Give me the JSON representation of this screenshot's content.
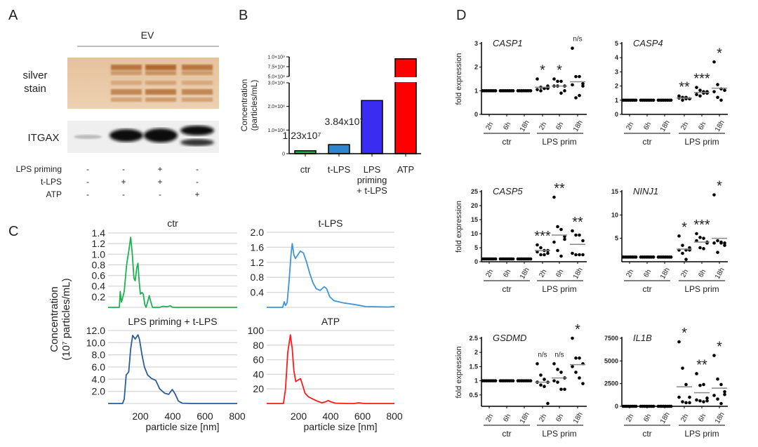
{
  "panel_letters": {
    "a": "A",
    "b": "B",
    "c": "C",
    "d": "D"
  },
  "panel_a": {
    "ev_label": "EV",
    "silver_stain_label": [
      "silver",
      "stain"
    ],
    "itgax_label": "ITGAX",
    "condition_rows": [
      {
        "label": "LPS priming",
        "signs": [
          "-",
          "-",
          "+",
          "-"
        ]
      },
      {
        "label": "t-LPS",
        "signs": [
          "-",
          "+",
          "+",
          "-"
        ]
      },
      {
        "label": "ATP",
        "signs": [
          "-",
          "-",
          "-",
          "+"
        ]
      }
    ],
    "colors": {
      "silver_bg": "#e9c9a6",
      "silver_band": "#a55a1c",
      "blot_bg": "#efefef",
      "blot_band": "#111111"
    }
  },
  "chart_data": [
    {
      "id": "B",
      "type": "bar",
      "ylabel": [
        "Concentration",
        "(particles/mL)"
      ],
      "categories": [
        [
          "ctr"
        ],
        [
          "t-LPS"
        ],
        [
          "LPS",
          "priming",
          "+ t-LPS"
        ],
        [
          "ATP"
        ]
      ],
      "values": [
        12300000,
        38400000,
        225000000,
        950000000
      ],
      "colors": [
        "#1fb040",
        "#2f86d0",
        "#3a2cf0",
        "#ff0000"
      ],
      "data_labels": [
        "1.23x10⁷",
        "3.84x10⁷",
        "",
        ""
      ],
      "ytick_values": [
        0,
        100000000,
        200000000,
        300000000,
        500000000,
        750000000,
        1000000000
      ],
      "ytick_labels": [
        "0",
        "1.0×10⁸",
        "2.0×10⁸",
        "3.0×10⁸",
        "5.0×10⁸",
        "7.5×10⁸",
        "1.0×10⁹"
      ],
      "axis_break": [
        300000000,
        500000000
      ],
      "ylim": [
        0,
        1000000000
      ]
    },
    {
      "id": "C",
      "type": "line",
      "ylabel": [
        "Concentration",
        "(10⁷ particles/mL)"
      ],
      "xlabel": "particle size [nm]",
      "xlim": [
        0,
        800
      ],
      "xticks": [
        "200",
        "400",
        "600",
        "800"
      ],
      "grid": true,
      "panels": [
        {
          "title": "ctr",
          "color": "#1fb050",
          "ylim": [
            0,
            1.4
          ],
          "yticks": [
            "0.2",
            "0.4",
            "0.6",
            "0.8",
            "1.0",
            "1.2",
            "1.4"
          ],
          "points": [
            [
              0,
              0
            ],
            [
              70,
              0
            ],
            [
              75,
              0.3
            ],
            [
              82,
              0.1
            ],
            [
              88,
              0.15
            ],
            [
              100,
              0.3
            ],
            [
              115,
              0.8
            ],
            [
              130,
              1.1
            ],
            [
              140,
              1.32
            ],
            [
              150,
              1.0
            ],
            [
              160,
              0.55
            ],
            [
              168,
              0.5
            ],
            [
              178,
              0.75
            ],
            [
              185,
              0.83
            ],
            [
              192,
              0.5
            ],
            [
              200,
              0.25
            ],
            [
              210,
              0.28
            ],
            [
              218,
              0.25
            ],
            [
              228,
              0.05
            ],
            [
              235,
              0.0
            ],
            [
              245,
              0.1
            ],
            [
              255,
              0.22
            ],
            [
              265,
              0.1
            ],
            [
              275,
              0.0
            ],
            [
              320,
              0.0
            ],
            [
              340,
              0.02
            ],
            [
              365,
              0.01
            ],
            [
              385,
              0.03
            ],
            [
              400,
              0.0
            ],
            [
              800,
              0
            ]
          ]
        },
        {
          "title": "t-LPS",
          "color": "#3c95d8",
          "ylim": [
            0,
            2.0
          ],
          "yticks": [
            "0.4",
            "0.8",
            "1.2",
            "1.6",
            "2.0"
          ],
          "points": [
            [
              0,
              0
            ],
            [
              100,
              0
            ],
            [
              110,
              0.15
            ],
            [
              118,
              0.05
            ],
            [
              128,
              0.12
            ],
            [
              140,
              0.7
            ],
            [
              152,
              1.4
            ],
            [
              160,
              1.7
            ],
            [
              170,
              1.4
            ],
            [
              180,
              1.3
            ],
            [
              195,
              1.4
            ],
            [
              210,
              1.5
            ],
            [
              230,
              1.45
            ],
            [
              250,
              1.2
            ],
            [
              270,
              0.9
            ],
            [
              290,
              0.65
            ],
            [
              310,
              0.5
            ],
            [
              335,
              0.45
            ],
            [
              360,
              0.55
            ],
            [
              375,
              0.5
            ],
            [
              395,
              0.28
            ],
            [
              420,
              0.18
            ],
            [
              480,
              0.12
            ],
            [
              560,
              0.07
            ],
            [
              620,
              0.02
            ],
            [
              760,
              0.01
            ],
            [
              800,
              0.02
            ]
          ]
        },
        {
          "title": "LPS priming + t-LPS",
          "color": "#2a5d96",
          "ylim": [
            0,
            12.0
          ],
          "yticks": [
            "2.0",
            "4.0",
            "6.0",
            "8.0",
            "10.0",
            "12.0"
          ],
          "points": [
            [
              0,
              0
            ],
            [
              90,
              0
            ],
            [
              100,
              0.7
            ],
            [
              112,
              4.7
            ],
            [
              128,
              5.2
            ],
            [
              140,
              9
            ],
            [
              152,
              11.2
            ],
            [
              168,
              10.6
            ],
            [
              185,
              11.3
            ],
            [
              195,
              10.5
            ],
            [
              210,
              8
            ],
            [
              225,
              6
            ],
            [
              245,
              4.7
            ],
            [
              270,
              4.1
            ],
            [
              295,
              3.8
            ],
            [
              320,
              2.4
            ],
            [
              350,
              1.7
            ],
            [
              375,
              1.5
            ],
            [
              398,
              2.3
            ],
            [
              415,
              1.6
            ],
            [
              435,
              0.4
            ],
            [
              460,
              0.05
            ],
            [
              520,
              0
            ],
            [
              800,
              0
            ]
          ]
        },
        {
          "title": "ATP",
          "color": "#ff1a1a",
          "ylim": [
            0,
            100
          ],
          "yticks": [
            "20",
            "40",
            "60",
            "80",
            "100"
          ],
          "points": [
            [
              0,
              0
            ],
            [
              105,
              0
            ],
            [
              118,
              20
            ],
            [
              132,
              70
            ],
            [
              148,
              94
            ],
            [
              160,
              75
            ],
            [
              170,
              45
            ],
            [
              182,
              30
            ],
            [
              195,
              32
            ],
            [
              212,
              34
            ],
            [
              225,
              25
            ],
            [
              240,
              14
            ],
            [
              262,
              9
            ],
            [
              290,
              6
            ],
            [
              320,
              3
            ],
            [
              345,
              1
            ],
            [
              365,
              2
            ],
            [
              385,
              4
            ],
            [
              405,
              2
            ],
            [
              430,
              0.5
            ],
            [
              500,
              0
            ],
            [
              550,
              0
            ],
            [
              575,
              1
            ],
            [
              610,
              0
            ],
            [
              800,
              0
            ]
          ]
        }
      ]
    },
    {
      "id": "D",
      "type": "scatter",
      "ylabel": "fold expression",
      "xtick_labels": [
        "2h",
        "6h",
        "18h",
        "2h",
        "6h",
        "18h"
      ],
      "group_labels": [
        "ctr",
        "LPS prim"
      ],
      "mean_line_color": "#888888",
      "panels": [
        {
          "gene": "CASP1",
          "ylim": [
            0,
            3
          ],
          "yticks": [
            0,
            1,
            2,
            3
          ],
          "annotations": [
            "*",
            "*",
            "n/s"
          ],
          "groups": [
            [
              1,
              1,
              1,
              1,
              1,
              1,
              1,
              1
            ],
            [
              1,
              1,
              1,
              1,
              1,
              1,
              1,
              1
            ],
            [
              1,
              1,
              1,
              1,
              1,
              1,
              1,
              1
            ],
            [
              1.5,
              1.15,
              1.1,
              1.1,
              1.05,
              1.0,
              1.1,
              1.2
            ],
            [
              1.5,
              1.4,
              1.4,
              1.2,
              1.2,
              1.2,
              0.9,
              1.0
            ],
            [
              2.8,
              1.6,
              1.6,
              1.2,
              1.25,
              0.7,
              0.8,
              1.3
            ]
          ],
          "means": [
            1,
            1,
            1,
            1.15,
            1.2,
            1.38
          ]
        },
        {
          "gene": "CASP4",
          "ylim": [
            0,
            5
          ],
          "yticks": [
            0,
            1,
            2,
            3,
            4,
            5
          ],
          "annotations": [
            "**",
            "***",
            "*"
          ],
          "groups": [
            [
              1,
              1,
              1,
              1,
              1,
              1,
              1,
              1
            ],
            [
              1,
              1,
              1,
              1,
              1,
              1,
              1,
              1
            ],
            [
              1,
              1,
              1,
              1,
              1,
              1,
              1,
              1
            ],
            [
              1.3,
              1.2,
              1.1,
              1.1,
              1.15,
              1.0,
              1.2,
              1.1
            ],
            [
              1.9,
              1.7,
              1.6,
              1.5,
              1.4,
              1.3,
              1.5,
              1.6
            ],
            [
              3.7,
              2.1,
              1.8,
              1.7,
              1.6,
              1.2,
              1.0,
              1.7
            ]
          ],
          "means": [
            1,
            1,
            1,
            1.15,
            1.55,
            1.85
          ]
        },
        {
          "gene": "CASP5",
          "ylim": [
            0,
            25
          ],
          "yticks": [
            0,
            5,
            10,
            15,
            20,
            25
          ],
          "annotations": [
            "***",
            "**",
            "**"
          ],
          "groups": [
            [
              1,
              1,
              1,
              1,
              1,
              1,
              1,
              1
            ],
            [
              1,
              1,
              1,
              1,
              1,
              1,
              1,
              1
            ],
            [
              1,
              1,
              1,
              1,
              1,
              1,
              1,
              1
            ],
            [
              6,
              5,
              4,
              4,
              3.5,
              2.5,
              2.5,
              3
            ],
            [
              23,
              12.5,
              11.5,
              8,
              7,
              4,
              2,
              9
            ],
            [
              11,
              9.5,
              9.5,
              7.5,
              3,
              2.5,
              2.5,
              2.5
            ]
          ],
          "means": [
            1,
            1,
            1,
            4,
            9.5,
            6.2
          ]
        },
        {
          "gene": "NINJ1",
          "ylim": [
            0,
            15
          ],
          "yticks": [
            5,
            10,
            15
          ],
          "annotations": [
            "*",
            "***",
            "*"
          ],
          "groups": [
            [
              1,
              1,
              1,
              1,
              1,
              1,
              1,
              1
            ],
            [
              1,
              1,
              1,
              1,
              1,
              1,
              1,
              1
            ],
            [
              1,
              1,
              1,
              1,
              1,
              1,
              1,
              1
            ],
            [
              5.5,
              3.5,
              2.5,
              2.5,
              2.5,
              1.8,
              0.5,
              3
            ],
            [
              6,
              5.2,
              5,
              4.2,
              4.5,
              3,
              2.8,
              4
            ],
            [
              14.3,
              4.5,
              4.2,
              3.5,
              4,
              2,
              4,
              4
            ]
          ],
          "means": [
            1,
            1,
            1,
            2.7,
            4.2,
            5
          ]
        },
        {
          "gene": "GSDMD",
          "ylim": [
            0.1,
            2.5
          ],
          "yticks": [
            0.5,
            1.0,
            1.5,
            2.0,
            2.5
          ],
          "annotations": [
            "n/s",
            "n/s",
            "*"
          ],
          "groups": [
            [
              1,
              1,
              1,
              1,
              1,
              1,
              1,
              1
            ],
            [
              1,
              1,
              1,
              1,
              1,
              1,
              1,
              1
            ],
            [
              1,
              1,
              1,
              1,
              1,
              1,
              1,
              1
            ],
            [
              1.6,
              1.2,
              1.05,
              0.95,
              0.95,
              0.85,
              0.8,
              0.2
            ],
            [
              1.6,
              1.4,
              1.3,
              1.1,
              1.0,
              0.95,
              0.7,
              0.7
            ],
            [
              2.5,
              1.8,
              1.8,
              1.6,
              1.5,
              1.3,
              1.1,
              0.9
            ]
          ],
          "means": [
            1,
            1,
            1,
            0.95,
            1.1,
            1.57
          ]
        },
        {
          "gene": "IL1B",
          "ylim": [
            0,
            7500
          ],
          "yticks": [
            0,
            2500,
            5000,
            7500
          ],
          "annotations": [
            "*",
            "**",
            "*"
          ],
          "groups": [
            [
              0,
              0,
              0,
              0,
              0,
              0,
              0,
              0
            ],
            [
              0,
              0,
              0,
              0,
              0,
              0,
              0,
              0
            ],
            [
              0,
              0,
              0,
              0,
              0,
              0,
              0,
              0
            ],
            [
              7100,
              4200,
              2400,
              1000,
              1000,
              500,
              400,
              400
            ],
            [
              3600,
              2300,
              2400,
              900,
              700,
              600,
              500,
              600
            ],
            [
              5600,
              3000,
              2400,
              1600,
              1200,
              800,
              300,
              1300
            ]
          ],
          "means": [
            0,
            0,
            0,
            2150,
            1500,
            2000
          ]
        }
      ]
    }
  ]
}
